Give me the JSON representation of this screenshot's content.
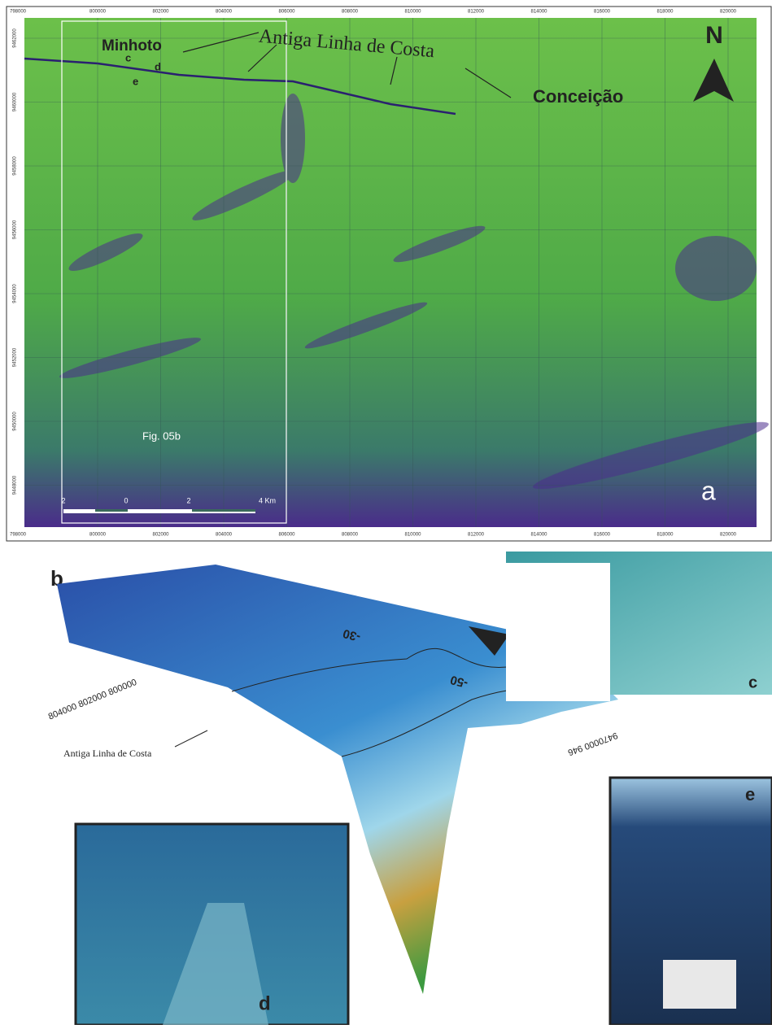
{
  "map": {
    "x_ticks": [
      "798000",
      "800000",
      "802000",
      "804000",
      "806000",
      "808000",
      "810000",
      "812000",
      "814000",
      "816000",
      "818000",
      "820000"
    ],
    "y_ticks": [
      "9462000",
      "9460000",
      "9458000",
      "9456000",
      "9454000",
      "9452000",
      "9450000",
      "9448000"
    ],
    "place_1": "Minhoto",
    "place_2": "Conceição",
    "coastline": "Antiga Linha de Costa",
    "point_c": "c",
    "point_d": "d",
    "point_e": "e",
    "north": "N",
    "panel": "a",
    "inset": "Fig. 05b",
    "scale": [
      "2",
      "0",
      "2",
      "4 Km"
    ]
  },
  "surface": {
    "panel": "b",
    "coastline": "Antiga Linha de Costa",
    "contour_1": "-30",
    "contour_2": "-50",
    "north": "N",
    "axis_x": "804000 802000 800000",
    "axis_y": "9470000 946"
  },
  "photos": {
    "c": "c",
    "d": "d",
    "e": "e"
  }
}
